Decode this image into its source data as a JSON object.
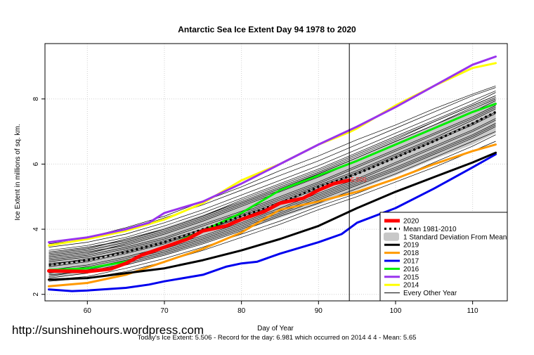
{
  "chart_data": {
    "type": "line",
    "title": "Antarctic Sea Ice Extent Day 94 1978 to 2020",
    "xlabel": "Day of Year",
    "ylabel": "Ice Extent in millions of sq. km.",
    "xlim": [
      54.5,
      114.5
    ],
    "ylim": [
      1.8,
      9.7
    ],
    "x_ticks": [
      60,
      70,
      80,
      90,
      100,
      110
    ],
    "y_ticks": [
      2,
      4,
      6,
      8
    ],
    "current_day": 94,
    "today_value": 5.506,
    "today_label": "5.506",
    "watermark": "http://sunshinehours.wordpress.com",
    "footer": "Today's Ice Extent: 5.506  - Record for the day: 6.981 which occurred on 2014 4 4  - Mean: 5.65",
    "band": {
      "name": "1 Standard Deviation From Mean",
      "x": [
        55,
        60,
        65,
        70,
        75,
        80,
        85,
        90,
        95,
        100,
        105,
        110,
        113
      ],
      "upper": [
        3.3,
        3.45,
        3.7,
        4.05,
        4.45,
        4.85,
        5.3,
        5.75,
        6.2,
        6.7,
        7.2,
        7.7,
        8.05
      ],
      "lower": [
        2.5,
        2.65,
        2.9,
        3.2,
        3.55,
        3.95,
        4.35,
        4.75,
        5.2,
        5.65,
        6.15,
        6.6,
        6.95
      ]
    },
    "background_series": {
      "name": "Every Other Year",
      "lines": [
        {
          "x": [
            55,
            60,
            65,
            70,
            75,
            80,
            85,
            90,
            95,
            100,
            105,
            110,
            113
          ],
          "y": [
            3.05,
            3.2,
            3.45,
            3.75,
            4.15,
            4.55,
            5.0,
            5.45,
            5.95,
            6.45,
            6.95,
            7.45,
            7.8
          ]
        },
        {
          "x": [
            55,
            60,
            65,
            70,
            75,
            80,
            85,
            90,
            95,
            100,
            105,
            110,
            113
          ],
          "y": [
            2.85,
            3.0,
            3.25,
            3.55,
            3.95,
            4.35,
            4.8,
            5.25,
            5.7,
            6.2,
            6.7,
            7.2,
            7.55
          ]
        },
        {
          "x": [
            55,
            60,
            65,
            70,
            75,
            80,
            85,
            90,
            95,
            100,
            105,
            110,
            113
          ],
          "y": [
            3.25,
            3.4,
            3.7,
            4.0,
            4.4,
            4.85,
            5.3,
            5.75,
            6.25,
            6.75,
            7.3,
            7.8,
            8.1
          ]
        },
        {
          "x": [
            55,
            60,
            65,
            70,
            75,
            80,
            85,
            90,
            95,
            100,
            105,
            110,
            113
          ],
          "y": [
            2.65,
            2.8,
            3.05,
            3.35,
            3.7,
            4.1,
            4.55,
            5.0,
            5.45,
            5.9,
            6.4,
            6.9,
            7.25
          ]
        },
        {
          "x": [
            55,
            60,
            65,
            70,
            75,
            80,
            85,
            90,
            95,
            100,
            105,
            110,
            113
          ],
          "y": [
            3.45,
            3.6,
            3.85,
            4.2,
            4.6,
            5.05,
            5.5,
            5.95,
            6.45,
            6.95,
            7.45,
            7.95,
            8.25
          ]
        },
        {
          "x": [
            55,
            60,
            65,
            70,
            75,
            80,
            85,
            90,
            95,
            100,
            105,
            110,
            113
          ],
          "y": [
            2.5,
            2.65,
            2.9,
            3.2,
            3.55,
            3.95,
            4.4,
            4.8,
            5.25,
            5.7,
            6.2,
            6.7,
            7.0
          ]
        },
        {
          "x": [
            55,
            60,
            65,
            70,
            75,
            80,
            85,
            90,
            95,
            100,
            105,
            110,
            113
          ],
          "y": [
            3.15,
            3.3,
            3.5,
            3.85,
            4.25,
            4.7,
            5.15,
            5.6,
            6.1,
            6.6,
            7.1,
            7.6,
            7.95
          ]
        },
        {
          "x": [
            55,
            60,
            65,
            70,
            75,
            80,
            85,
            90,
            95,
            100,
            105,
            110,
            113
          ],
          "y": [
            2.95,
            3.05,
            3.35,
            3.65,
            4.0,
            4.45,
            4.9,
            5.35,
            5.8,
            6.3,
            6.8,
            7.35,
            7.7
          ]
        },
        {
          "x": [
            55,
            60,
            65,
            70,
            75,
            80,
            85,
            90,
            95,
            100,
            105,
            110,
            113
          ],
          "y": [
            2.75,
            2.9,
            3.15,
            3.45,
            3.8,
            4.2,
            4.65,
            5.1,
            5.55,
            6.05,
            6.55,
            7.05,
            7.4
          ]
        },
        {
          "x": [
            55,
            60,
            65,
            70,
            75,
            80,
            85,
            90,
            95,
            100,
            105,
            110,
            113
          ],
          "y": [
            3.35,
            3.5,
            3.75,
            4.1,
            4.5,
            4.95,
            5.4,
            5.85,
            6.35,
            6.85,
            7.35,
            7.85,
            8.2
          ]
        },
        {
          "x": [
            55,
            60,
            65,
            70,
            75,
            80,
            85,
            90,
            95,
            100,
            105,
            110,
            113
          ],
          "y": [
            2.6,
            2.7,
            2.95,
            3.25,
            3.6,
            4.0,
            4.45,
            4.9,
            5.35,
            5.8,
            6.3,
            6.8,
            7.15
          ]
        },
        {
          "x": [
            55,
            60,
            65,
            70,
            75,
            80,
            85,
            90,
            95,
            100,
            105,
            110,
            113
          ],
          "y": [
            3.55,
            3.7,
            3.95,
            4.35,
            4.75,
            5.2,
            5.65,
            6.1,
            6.6,
            7.1,
            7.6,
            8.1,
            8.35
          ]
        },
        {
          "x": [
            55,
            60,
            65,
            70,
            75,
            80,
            85,
            90,
            95,
            100,
            105,
            110,
            113
          ],
          "y": [
            2.45,
            2.55,
            2.8,
            3.1,
            3.45,
            3.85,
            4.25,
            4.7,
            5.1,
            5.55,
            6.05,
            6.55,
            6.9
          ]
        },
        {
          "x": [
            55,
            60,
            65,
            70,
            75,
            80,
            85,
            90,
            95,
            100,
            105,
            110,
            113
          ],
          "y": [
            3.1,
            3.25,
            3.55,
            3.9,
            4.3,
            4.75,
            5.2,
            5.7,
            6.2,
            6.7,
            7.2,
            7.7,
            8.0
          ]
        },
        {
          "x": [
            55,
            60,
            65,
            70,
            75,
            80,
            85,
            90,
            95,
            100,
            105,
            110,
            113
          ],
          "y": [
            2.9,
            3.1,
            3.3,
            3.6,
            3.95,
            4.4,
            4.85,
            5.3,
            5.75,
            6.25,
            6.75,
            7.25,
            7.6
          ]
        },
        {
          "x": [
            55,
            60,
            65,
            70,
            75,
            80,
            85,
            90,
            95,
            100,
            105,
            110,
            113
          ],
          "y": [
            2.7,
            2.85,
            3.1,
            3.4,
            3.75,
            4.15,
            4.6,
            5.05,
            5.5,
            6.0,
            6.5,
            7.0,
            7.35
          ]
        },
        {
          "x": [
            55,
            60,
            65,
            70,
            75,
            80,
            85,
            90,
            95,
            100,
            105,
            110,
            113
          ],
          "y": [
            3.3,
            3.45,
            3.65,
            4.0,
            4.4,
            4.9,
            5.35,
            5.8,
            6.3,
            6.8,
            7.3,
            7.8,
            8.1
          ]
        },
        {
          "x": [
            55,
            60,
            65,
            70,
            75,
            80,
            85,
            90,
            95,
            100,
            105,
            110,
            113
          ],
          "y": [
            2.55,
            2.75,
            3.0,
            3.3,
            3.65,
            4.05,
            4.5,
            4.95,
            5.4,
            5.85,
            6.35,
            6.85,
            7.2
          ]
        },
        {
          "x": [
            55,
            60,
            65,
            70,
            75,
            80,
            85,
            90,
            95,
            100,
            105,
            110,
            113
          ],
          "y": [
            3.0,
            3.15,
            3.4,
            3.7,
            4.1,
            4.5,
            4.95,
            5.4,
            5.9,
            6.4,
            6.9,
            7.4,
            7.75
          ]
        },
        {
          "x": [
            55,
            60,
            65,
            70,
            75,
            80,
            85,
            90,
            95,
            100,
            105,
            110,
            113
          ],
          "y": [
            3.6,
            3.75,
            4.05,
            4.4,
            4.85,
            5.3,
            5.8,
            6.25,
            6.75,
            7.2,
            7.7,
            8.15,
            8.4
          ]
        },
        {
          "x": [
            55,
            60,
            65,
            70,
            75,
            80,
            85,
            90,
            95,
            100,
            105,
            110,
            113
          ],
          "y": [
            2.4,
            2.5,
            2.7,
            3.0,
            3.35,
            3.75,
            4.15,
            4.6,
            5.0,
            5.45,
            5.9,
            6.4,
            6.7
          ]
        },
        {
          "x": [
            55,
            60,
            65,
            70,
            75,
            80,
            85,
            90,
            95,
            100,
            105,
            110,
            113
          ],
          "y": [
            3.2,
            3.35,
            3.6,
            3.95,
            4.35,
            4.8,
            5.25,
            5.7,
            6.2,
            6.7,
            7.2,
            7.75,
            8.05
          ]
        }
      ]
    },
    "series": [
      {
        "name": "2020",
        "color": "#ff0000",
        "width": 5,
        "dash": false,
        "x": [
          55,
          60,
          63,
          65,
          67,
          70,
          73,
          75,
          78,
          80,
          83,
          85,
          88,
          90,
          92,
          94
        ],
        "y": [
          2.72,
          2.7,
          2.78,
          2.95,
          3.2,
          3.45,
          3.7,
          3.95,
          4.1,
          4.3,
          4.55,
          4.8,
          4.95,
          5.2,
          5.4,
          5.506
        ]
      },
      {
        "name": "Mean 1981-2010",
        "color": "#000000",
        "width": 3,
        "dash": true,
        "x": [
          55,
          60,
          65,
          70,
          75,
          80,
          85,
          90,
          95,
          100,
          105,
          110,
          113
        ],
        "y": [
          2.9,
          3.05,
          3.3,
          3.6,
          4.0,
          4.4,
          4.8,
          5.3,
          5.7,
          6.2,
          6.7,
          7.25,
          7.6
        ]
      },
      {
        "name": "2019",
        "color": "#000000",
        "width": 3,
        "dash": false,
        "x": [
          55,
          60,
          65,
          70,
          75,
          80,
          85,
          90,
          95,
          100,
          105,
          110,
          113
        ],
        "y": [
          2.45,
          2.5,
          2.65,
          2.8,
          3.05,
          3.35,
          3.7,
          4.1,
          4.65,
          5.15,
          5.6,
          6.05,
          6.35
        ]
      },
      {
        "name": "2018",
        "color": "#ff9900",
        "width": 3,
        "dash": false,
        "x": [
          55,
          60,
          65,
          70,
          75,
          80,
          85,
          90,
          95,
          100,
          105,
          110,
          113
        ],
        "y": [
          2.25,
          2.35,
          2.6,
          3.0,
          3.4,
          3.9,
          4.6,
          4.85,
          5.15,
          5.55,
          6.0,
          6.4,
          6.6
        ]
      },
      {
        "name": "2017",
        "color": "#0000ee",
        "width": 3,
        "dash": false,
        "x": [
          55,
          58,
          60,
          65,
          68,
          70,
          75,
          78,
          80,
          82,
          85,
          90,
          93,
          95,
          100,
          105,
          110,
          113
        ],
        "y": [
          2.15,
          2.1,
          2.12,
          2.2,
          2.3,
          2.4,
          2.6,
          2.85,
          2.95,
          3.0,
          3.25,
          3.6,
          3.85,
          4.2,
          4.65,
          5.25,
          5.9,
          6.3
        ]
      },
      {
        "name": "2016",
        "color": "#00ee00",
        "width": 3,
        "dash": false,
        "x": [
          55,
          60,
          65,
          70,
          75,
          80,
          85,
          90,
          95,
          100,
          105,
          110,
          113
        ],
        "y": [
          2.75,
          2.8,
          3.0,
          3.45,
          3.95,
          4.5,
          5.2,
          5.65,
          6.1,
          6.6,
          7.1,
          7.6,
          7.85
        ]
      },
      {
        "name": "2015",
        "color": "#9933ee",
        "width": 3,
        "dash": false,
        "x": [
          55,
          60,
          65,
          68,
          70,
          75,
          80,
          85,
          90,
          95,
          100,
          105,
          110,
          113
        ],
        "y": [
          3.6,
          3.75,
          4.0,
          4.2,
          4.5,
          4.85,
          5.4,
          6.0,
          6.6,
          7.15,
          7.75,
          8.4,
          9.05,
          9.3
        ]
      },
      {
        "name": "2014",
        "color": "#ffff00",
        "width": 3,
        "dash": false,
        "x": [
          55,
          60,
          65,
          70,
          75,
          80,
          85,
          90,
          94,
          95,
          100,
          105,
          110,
          113
        ],
        "y": [
          3.5,
          3.7,
          3.95,
          4.3,
          4.8,
          5.5,
          6.0,
          6.6,
          6.981,
          7.1,
          7.8,
          8.4,
          8.95,
          9.1
        ]
      }
    ],
    "legend": {
      "position": "bottom-right",
      "entries": [
        {
          "label": "2020",
          "color": "#ff0000",
          "style": "line",
          "width": 5
        },
        {
          "label": "Mean 1981-2010",
          "color": "#000000",
          "style": "dashed",
          "width": 3
        },
        {
          "label": "1 Standard Deviation From Mean",
          "color": "#c8c8c8",
          "style": "box",
          "width": 0
        },
        {
          "label": "2019",
          "color": "#000000",
          "style": "line",
          "width": 3
        },
        {
          "label": "2018",
          "color": "#ff9900",
          "style": "line",
          "width": 3
        },
        {
          "label": "2017",
          "color": "#0000ee",
          "style": "line",
          "width": 3
        },
        {
          "label": "2016",
          "color": "#00ee00",
          "style": "line",
          "width": 3
        },
        {
          "label": "2015",
          "color": "#9933ee",
          "style": "line",
          "width": 3
        },
        {
          "label": "2014",
          "color": "#ffff00",
          "style": "line",
          "width": 3
        },
        {
          "label": "Every Other Year",
          "color": "#000000",
          "style": "line",
          "width": 1
        }
      ]
    }
  }
}
